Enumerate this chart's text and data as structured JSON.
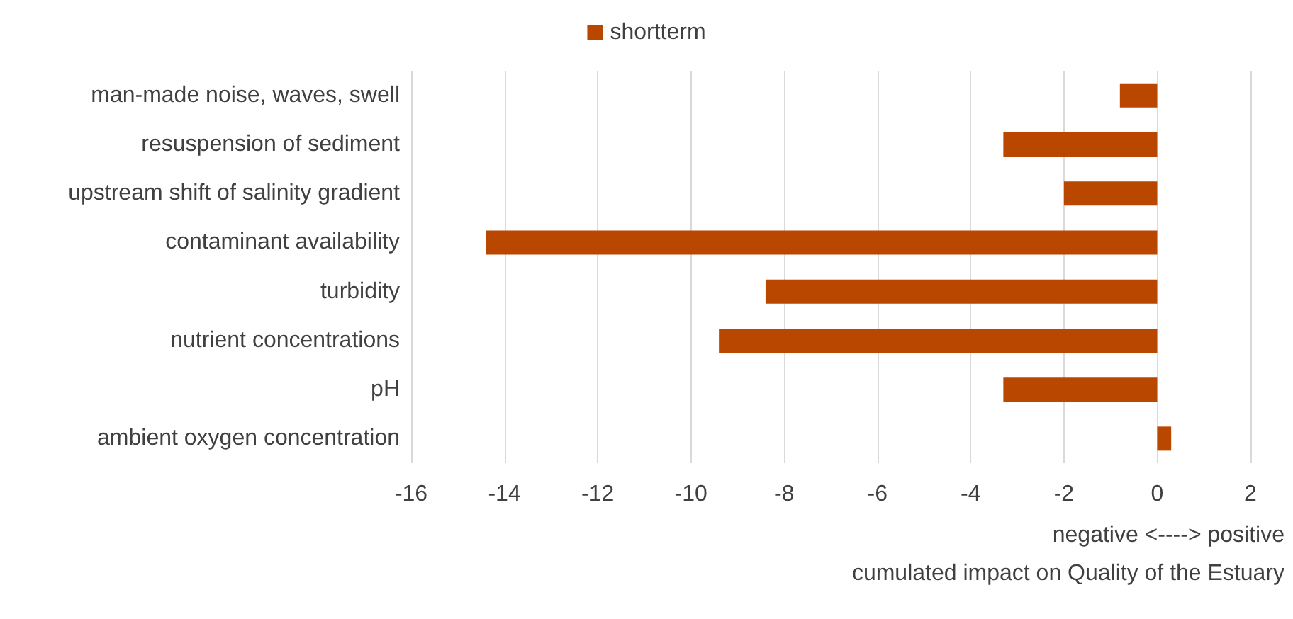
{
  "chart_data": {
    "type": "bar",
    "orientation": "horizontal",
    "categories": [
      "man-made noise, waves, swell",
      "resuspension of sediment",
      "upstream shift of salinity gradient",
      "contaminant availability",
      "turbidity",
      "nutrient concentrations",
      "pH",
      "ambient oxygen concentration"
    ],
    "series": [
      {
        "name": "shortterm",
        "color": "#b94700",
        "values": [
          -0.8,
          -3.3,
          -2,
          -14.4,
          -8.4,
          -9.4,
          -3.3,
          0.3
        ]
      }
    ],
    "xlim": [
      -16,
      2
    ],
    "xticks": [
      -16,
      -14,
      -12,
      -10,
      -8,
      -6,
      -4,
      -2,
      0,
      2
    ],
    "xlabel": "cumulated impact on Quality of the Estuary",
    "annotations": [
      "negative <----> positive"
    ],
    "grid": "x",
    "legend": "top"
  }
}
